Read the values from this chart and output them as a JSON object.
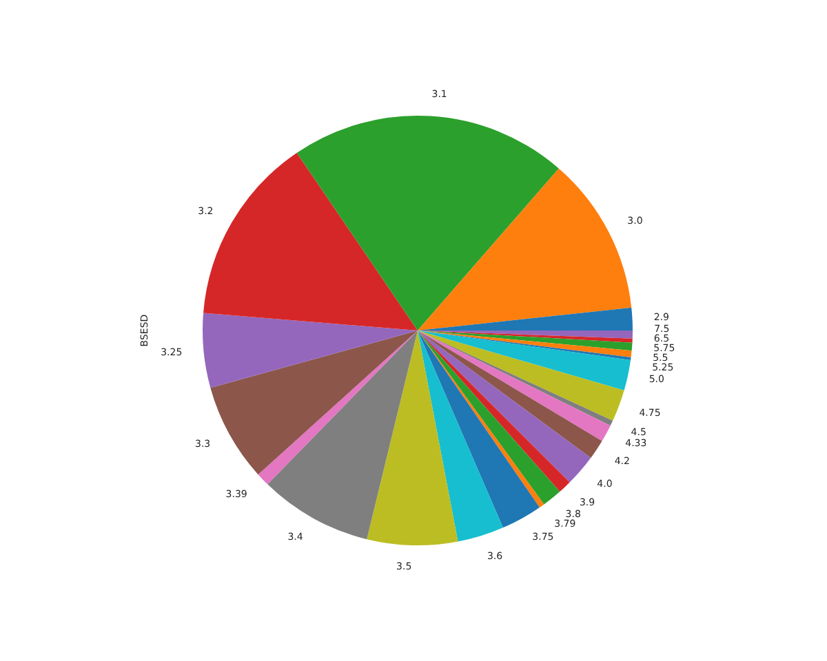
{
  "chart_data": {
    "type": "pie",
    "ylabel": "BSESD",
    "categories": [
      "2.9",
      "3.0",
      "3.1",
      "3.2",
      "3.25",
      "3.3",
      "3.39",
      "3.4",
      "3.5",
      "3.6",
      "3.75",
      "3.79",
      "3.8",
      "3.9",
      "4.0",
      "4.2",
      "4.33",
      "4.5",
      "4.75",
      "5.0",
      "5.25",
      "5.5",
      "5.75",
      "6.5",
      "7.5"
    ],
    "values": [
      1.7,
      11.9,
      20.9,
      14.2,
      5.6,
      7.4,
      1.0,
      8.5,
      6.8,
      3.5,
      3.1,
      0.4,
      1.5,
      1.0,
      2.4,
      1.5,
      1.3,
      0.4,
      2.4,
      2.3,
      0.2,
      0.5,
      0.6,
      0.3,
      0.6
    ],
    "colors": [
      "#1f77b4",
      "#ff7f0e",
      "#2ca02c",
      "#d62728",
      "#9467bd",
      "#8c564b",
      "#e377c2",
      "#7f7f7f",
      "#bcbd22",
      "#17becf",
      "#1f77b4",
      "#ff7f0e",
      "#2ca02c",
      "#d62728",
      "#9467bd",
      "#8c564b",
      "#e377c2",
      "#7f7f7f",
      "#bcbd22",
      "#17becf",
      "#1f77b4",
      "#ff7f0e",
      "#2ca02c",
      "#d62728",
      "#9467bd"
    ]
  }
}
